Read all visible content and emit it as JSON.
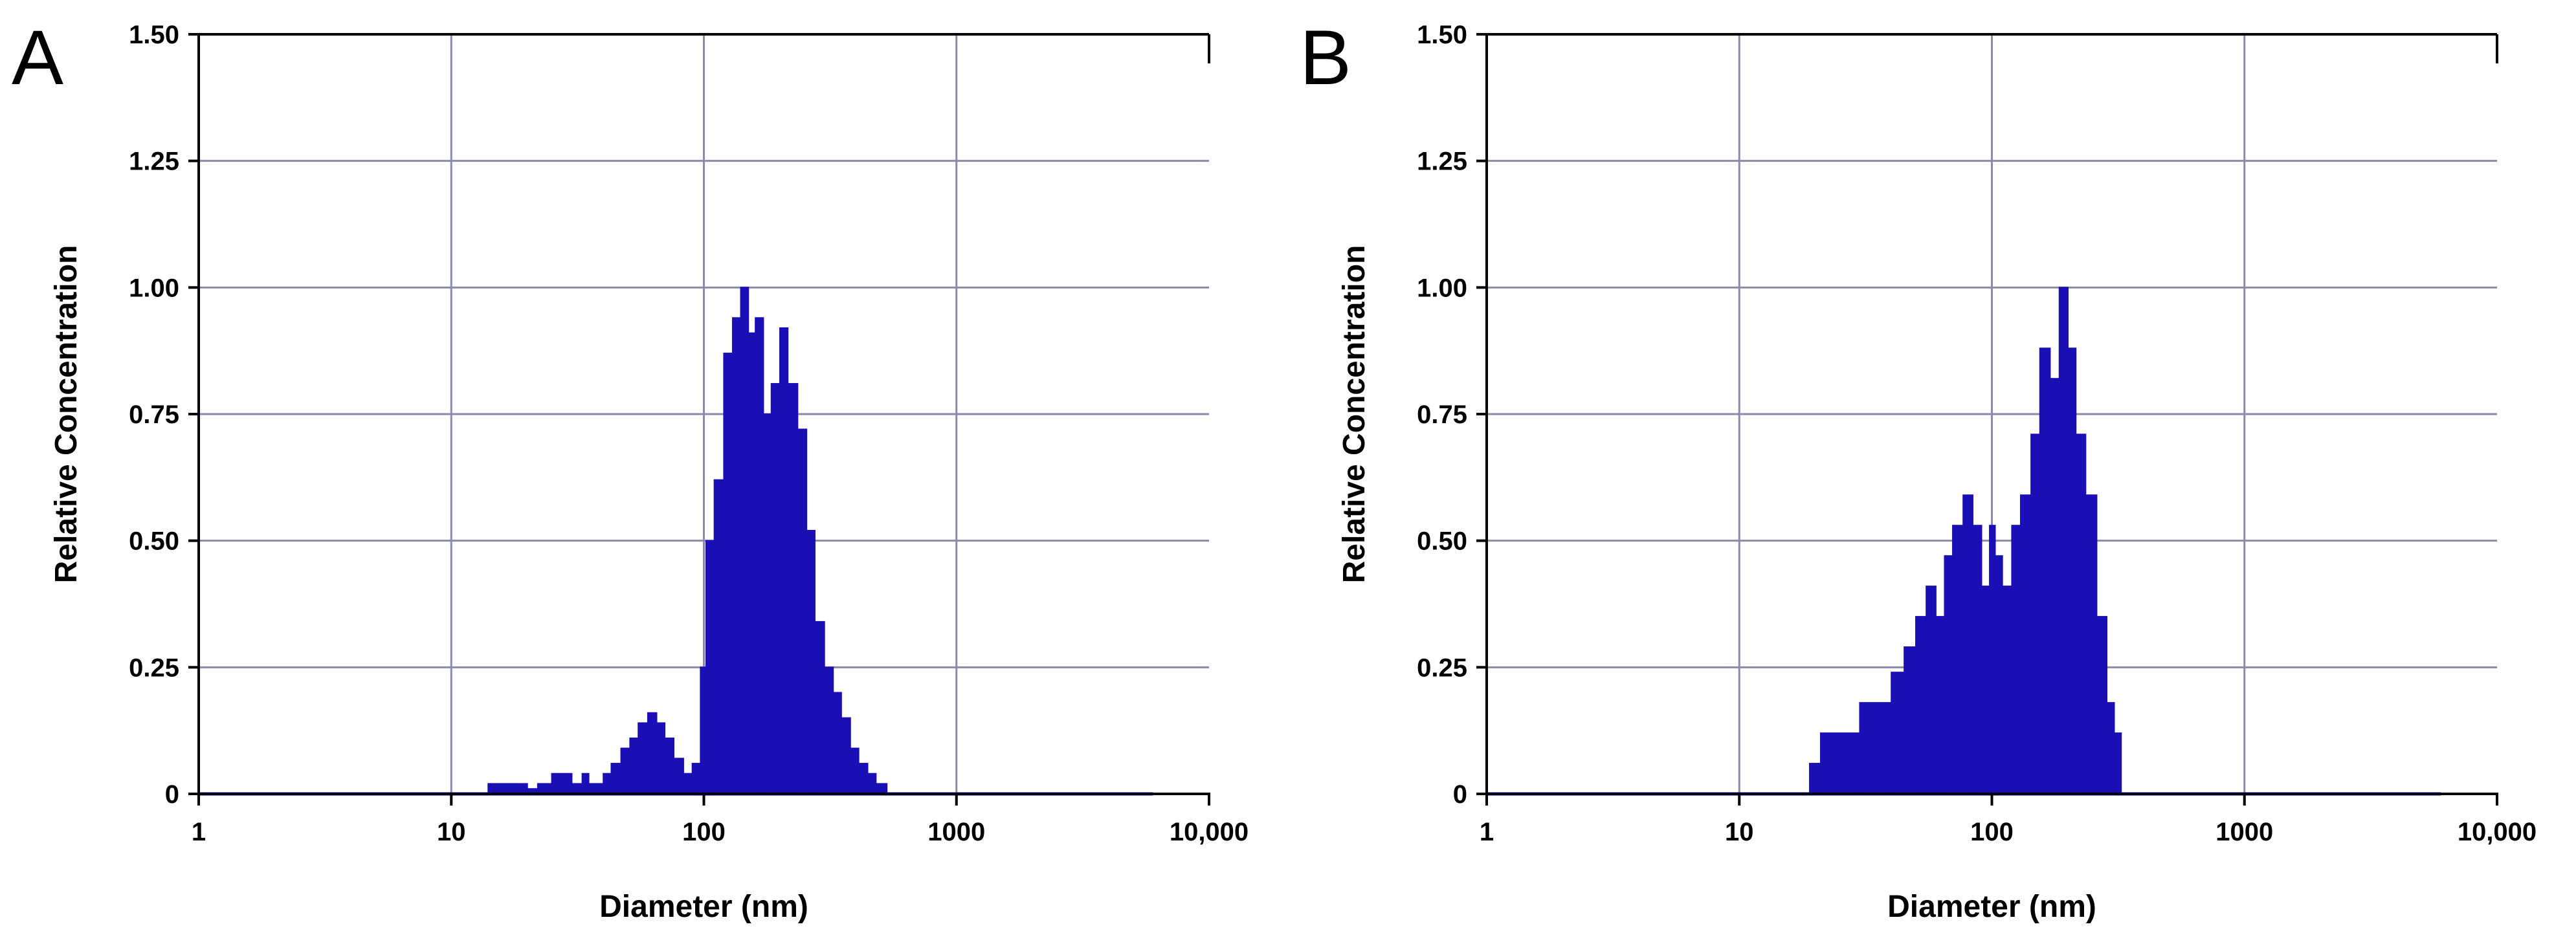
{
  "chart_data": [
    {
      "panel_label": "A",
      "type": "bar",
      "xlabel": "Diameter (nm)",
      "ylabel": "Relative Concentration",
      "xscale": "log",
      "xlim": [
        1,
        10000
      ],
      "ylim": [
        0,
        1.5
      ],
      "grid": true,
      "x_tick_labels": [
        "1",
        "10",
        "100",
        "1000",
        "10,000"
      ],
      "x_tick_values": [
        1,
        10,
        100,
        1000,
        10000
      ],
      "y_tick_labels": [
        "0",
        "0.25",
        "0.50",
        "0.75",
        "1.00",
        "1.25",
        "1.50"
      ],
      "y_tick_values": [
        0,
        0.25,
        0.5,
        0.75,
        1.0,
        1.25,
        1.5
      ],
      "baseline_extent": [
        1,
        6000
      ],
      "bins": [
        {
          "x0": 14,
          "x1": 20,
          "y": 0.02
        },
        {
          "x0": 20,
          "x1": 22,
          "y": 0.01
        },
        {
          "x0": 22,
          "x1": 25,
          "y": 0.02
        },
        {
          "x0": 25,
          "x1": 30,
          "y": 0.04
        },
        {
          "x0": 30,
          "x1": 33,
          "y": 0.02
        },
        {
          "x0": 33,
          "x1": 35,
          "y": 0.04
        },
        {
          "x0": 35,
          "x1": 40,
          "y": 0.02
        },
        {
          "x0": 40,
          "x1": 43,
          "y": 0.04
        },
        {
          "x0": 43,
          "x1": 47,
          "y": 0.06
        },
        {
          "x0": 47,
          "x1": 51,
          "y": 0.09
        },
        {
          "x0": 51,
          "x1": 55,
          "y": 0.11
        },
        {
          "x0": 55,
          "x1": 60,
          "y": 0.14
        },
        {
          "x0": 60,
          "x1": 65,
          "y": 0.16
        },
        {
          "x0": 65,
          "x1": 70,
          "y": 0.14
        },
        {
          "x0": 70,
          "x1": 76,
          "y": 0.11
        },
        {
          "x0": 76,
          "x1": 83,
          "y": 0.07
        },
        {
          "x0": 83,
          "x1": 90,
          "y": 0.04
        },
        {
          "x0": 90,
          "x1": 97,
          "y": 0.06
        },
        {
          "x0": 97,
          "x1": 102,
          "y": 0.25
        },
        {
          "x0": 102,
          "x1": 110,
          "y": 0.5
        },
        {
          "x0": 110,
          "x1": 120,
          "y": 0.62
        },
        {
          "x0": 120,
          "x1": 130,
          "y": 0.87
        },
        {
          "x0": 130,
          "x1": 140,
          "y": 0.94
        },
        {
          "x0": 140,
          "x1": 150,
          "y": 1.0
        },
        {
          "x0": 150,
          "x1": 160,
          "y": 0.91
        },
        {
          "x0": 160,
          "x1": 172,
          "y": 0.94
        },
        {
          "x0": 172,
          "x1": 185,
          "y": 0.75
        },
        {
          "x0": 185,
          "x1": 200,
          "y": 0.81
        },
        {
          "x0": 200,
          "x1": 215,
          "y": 0.92
        },
        {
          "x0": 215,
          "x1": 235,
          "y": 0.81
        },
        {
          "x0": 235,
          "x1": 255,
          "y": 0.72
        },
        {
          "x0": 255,
          "x1": 275,
          "y": 0.52
        },
        {
          "x0": 275,
          "x1": 300,
          "y": 0.34
        },
        {
          "x0": 300,
          "x1": 325,
          "y": 0.25
        },
        {
          "x0": 325,
          "x1": 350,
          "y": 0.2
        },
        {
          "x0": 350,
          "x1": 380,
          "y": 0.15
        },
        {
          "x0": 380,
          "x1": 410,
          "y": 0.09
        },
        {
          "x0": 410,
          "x1": 445,
          "y": 0.06
        },
        {
          "x0": 445,
          "x1": 480,
          "y": 0.04
        },
        {
          "x0": 480,
          "x1": 530,
          "y": 0.02
        }
      ],
      "color": "#1a0fb4"
    },
    {
      "panel_label": "B",
      "type": "bar",
      "xlabel": "Diameter (nm)",
      "ylabel": "Relative Concentration",
      "xscale": "log",
      "xlim": [
        1,
        10000
      ],
      "ylim": [
        0,
        1.5
      ],
      "grid": true,
      "x_tick_labels": [
        "1",
        "10",
        "100",
        "1000",
        "10,000"
      ],
      "x_tick_values": [
        1,
        10,
        100,
        1000,
        10000
      ],
      "y_tick_labels": [
        "0",
        "0.25",
        "0.50",
        "0.75",
        "1.00",
        "1.25",
        "1.50"
      ],
      "y_tick_values": [
        0,
        0.25,
        0.5,
        0.75,
        1.0,
        1.25,
        1.5
      ],
      "baseline_extent": [
        1,
        6000
      ],
      "bins": [
        {
          "x0": 19,
          "x1": 21,
          "y": 0.06
        },
        {
          "x0": 21,
          "x1": 30,
          "y": 0.12
        },
        {
          "x0": 30,
          "x1": 40,
          "y": 0.18
        },
        {
          "x0": 40,
          "x1": 45,
          "y": 0.24
        },
        {
          "x0": 45,
          "x1": 50,
          "y": 0.29
        },
        {
          "x0": 50,
          "x1": 55,
          "y": 0.35
        },
        {
          "x0": 55,
          "x1": 60,
          "y": 0.41
        },
        {
          "x0": 60,
          "x1": 65,
          "y": 0.35
        },
        {
          "x0": 65,
          "x1": 70,
          "y": 0.47
        },
        {
          "x0": 70,
          "x1": 77,
          "y": 0.53
        },
        {
          "x0": 77,
          "x1": 84,
          "y": 0.59
        },
        {
          "x0": 84,
          "x1": 91,
          "y": 0.53
        },
        {
          "x0": 91,
          "x1": 98,
          "y": 0.41
        },
        {
          "x0": 98,
          "x1": 103,
          "y": 0.53
        },
        {
          "x0": 103,
          "x1": 110,
          "y": 0.47
        },
        {
          "x0": 110,
          "x1": 120,
          "y": 0.41
        },
        {
          "x0": 120,
          "x1": 130,
          "y": 0.53
        },
        {
          "x0": 130,
          "x1": 143,
          "y": 0.59
        },
        {
          "x0": 143,
          "x1": 155,
          "y": 0.71
        },
        {
          "x0": 155,
          "x1": 170,
          "y": 0.88
        },
        {
          "x0": 170,
          "x1": 185,
          "y": 0.82
        },
        {
          "x0": 185,
          "x1": 200,
          "y": 1.0
        },
        {
          "x0": 200,
          "x1": 215,
          "y": 0.88
        },
        {
          "x0": 215,
          "x1": 235,
          "y": 0.71
        },
        {
          "x0": 235,
          "x1": 260,
          "y": 0.59
        },
        {
          "x0": 260,
          "x1": 285,
          "y": 0.35
        },
        {
          "x0": 285,
          "x1": 305,
          "y": 0.18
        },
        {
          "x0": 305,
          "x1": 325,
          "y": 0.12
        }
      ],
      "color": "#1a0fb4"
    }
  ]
}
